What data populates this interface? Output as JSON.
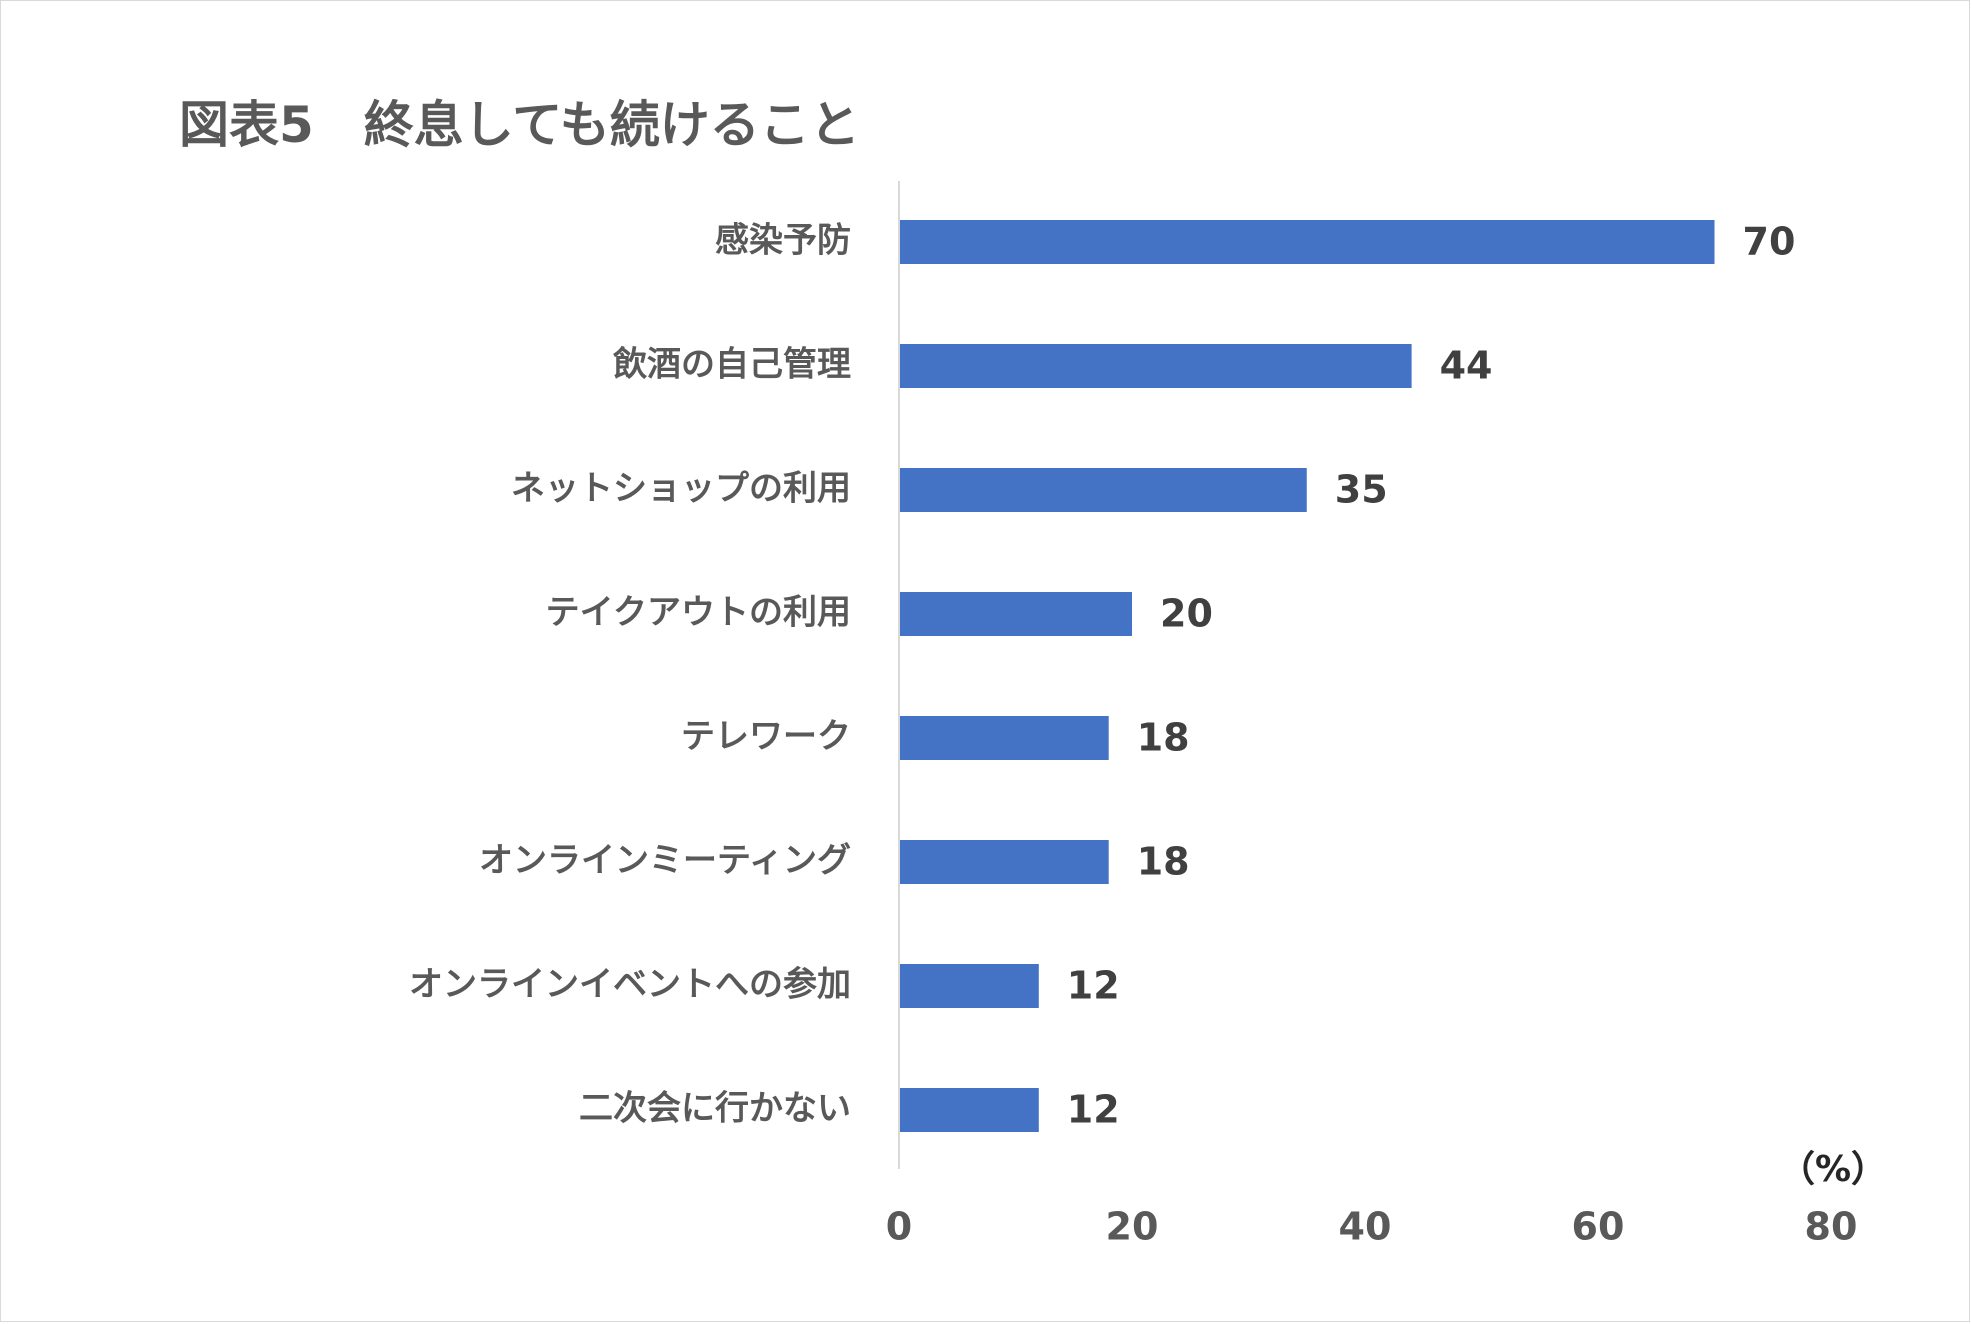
{
  "chart_data": {
    "type": "bar",
    "orientation": "horizontal",
    "title": "図表5　終息しても続けること",
    "unit": "（%）",
    "categories": [
      "感染予防",
      "飲酒の自己管理",
      "ネットショップの利用",
      "テイクアウトの利用",
      "テレワーク",
      "オンラインミーティング",
      "オンラインイベントへの参加",
      "二次会に行かない"
    ],
    "values": [
      70,
      44,
      35,
      20,
      18,
      18,
      12,
      12
    ],
    "xlim": [
      0,
      80
    ],
    "xticks": [
      0,
      20,
      40,
      60,
      80
    ],
    "bar_color": "#4472c4",
    "axis_color": "#d9d9d9",
    "grid": false,
    "legend": "none",
    "data_labels": true
  }
}
